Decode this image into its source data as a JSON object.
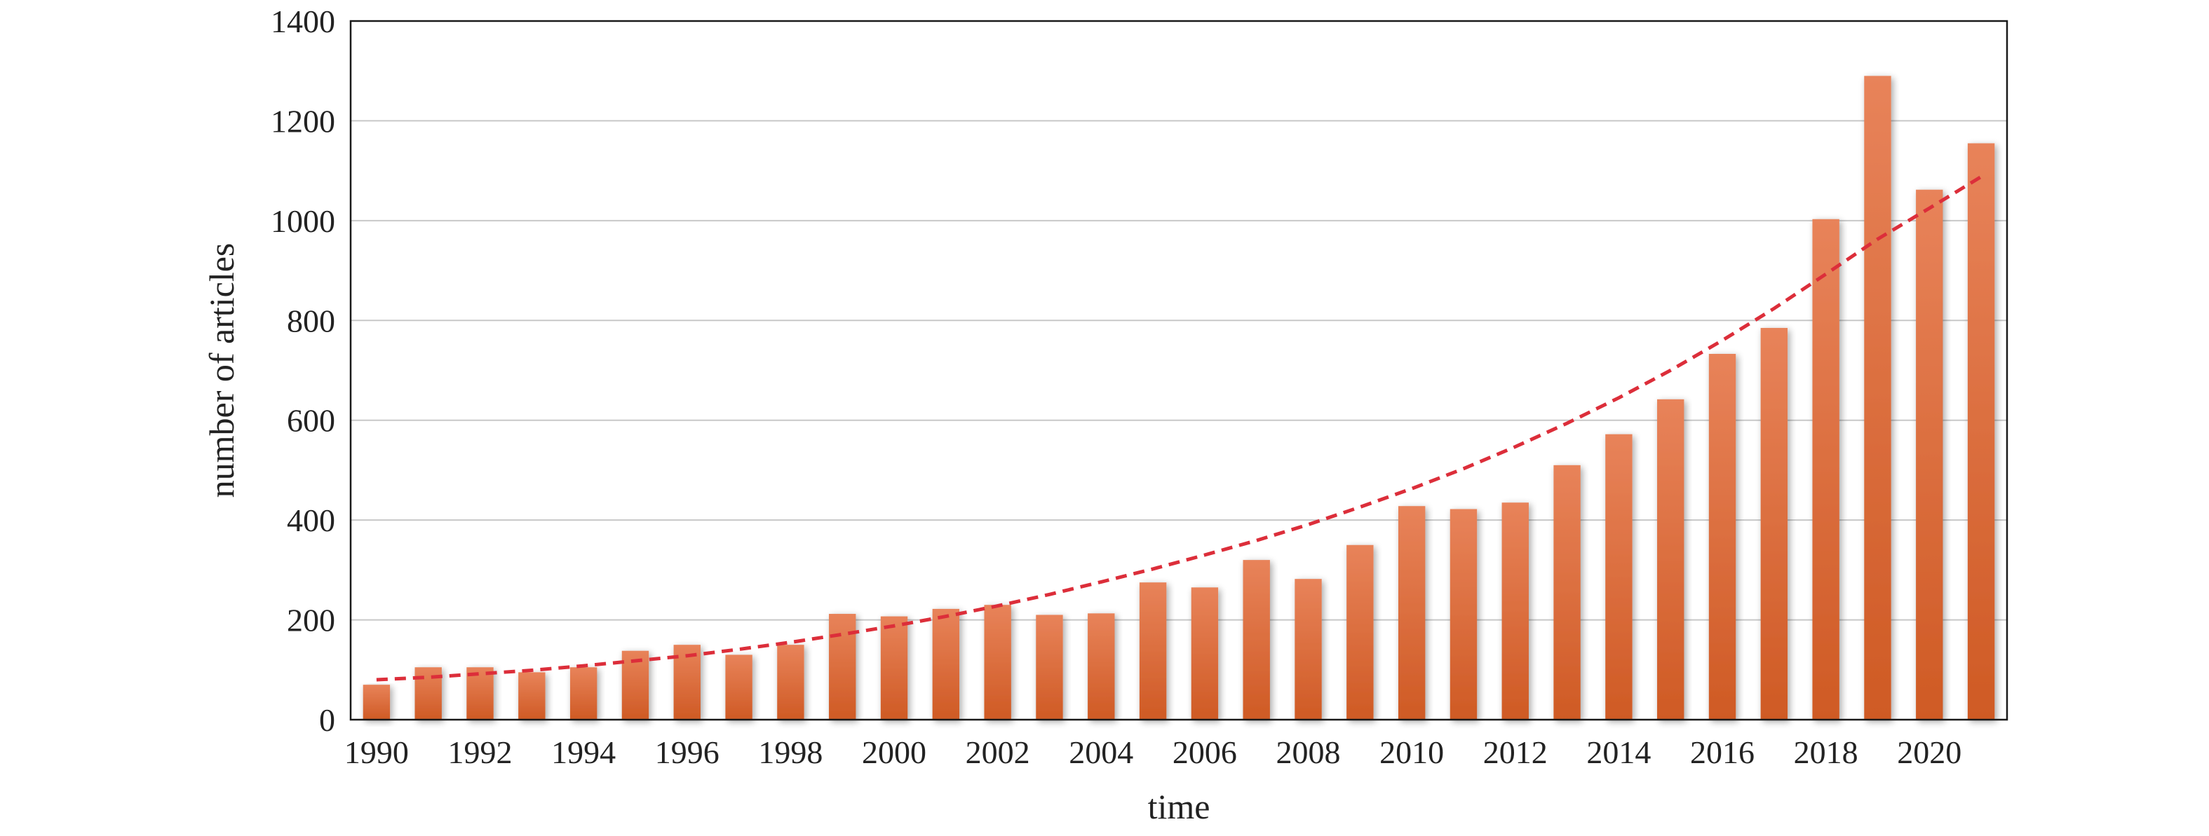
{
  "chart_data": {
    "type": "bar",
    "title": "",
    "xlabel": "time",
    "ylabel": "number of articles",
    "ylim": [
      0,
      1400
    ],
    "yticks": [
      0,
      200,
      400,
      600,
      800,
      1000,
      1200,
      1400
    ],
    "grid": "horizontal",
    "legend": "none",
    "categories": [
      "1990",
      "1991",
      "1992",
      "1993",
      "1994",
      "1995",
      "1996",
      "1997",
      "1998",
      "1999",
      "2000",
      "2001",
      "2002",
      "2003",
      "2004",
      "2005",
      "2006",
      "2007",
      "2008",
      "2009",
      "2010",
      "2011",
      "2012",
      "2013",
      "2014",
      "2015",
      "2016",
      "2017",
      "2018",
      "2019",
      "2020",
      "2021"
    ],
    "x_tick_labels": [
      "1990",
      "1992",
      "1994",
      "1996",
      "1998",
      "2000",
      "2002",
      "2004",
      "2006",
      "2008",
      "2010",
      "2012",
      "2014",
      "2016",
      "2018",
      "2020"
    ],
    "series": [
      {
        "values": [
          70,
          105,
          105,
          95,
          105,
          138,
          150,
          130,
          150,
          212,
          207,
          222,
          230,
          210,
          213,
          275,
          265,
          320,
          282,
          350,
          428,
          422,
          435,
          510,
          572,
          642,
          733,
          785,
          1003,
          1290,
          1062,
          1155
        ]
      }
    ],
    "trendline": {
      "type": "exponential",
      "style": "dashed",
      "values": [
        80,
        85,
        92,
        99,
        108,
        118,
        128,
        141,
        155,
        171,
        188,
        207,
        228,
        251,
        276,
        302,
        330,
        359,
        391,
        426,
        463,
        503,
        547,
        594,
        645,
        700,
        760,
        824,
        893,
        963,
        1025,
        1088
      ]
    },
    "colors": {
      "bar_top": "#e8835a",
      "bar_bottom": "#cf5a24",
      "trendline": "#dc2e3a"
    }
  }
}
